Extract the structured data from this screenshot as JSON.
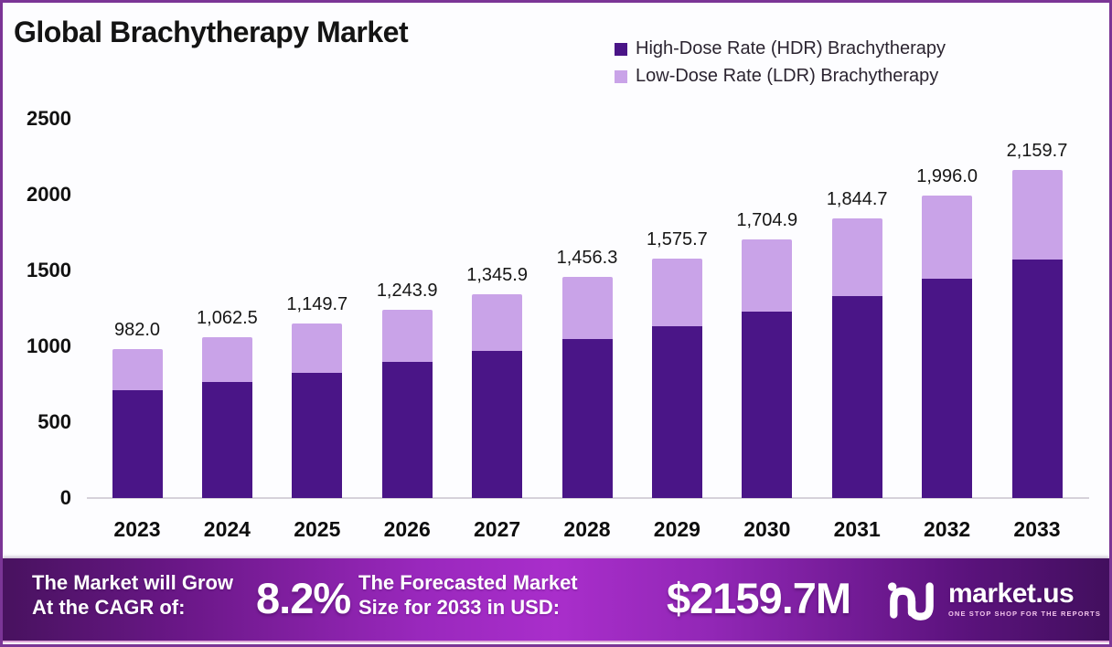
{
  "title": "Global Brachytherapy Market",
  "legend": [
    {
      "label": "High-Dose Rate (HDR) Brachytherapy",
      "color": "#4a1587"
    },
    {
      "label": "Low-Dose Rate (LDR) Brachytherapy",
      "color": "#c9a3e8"
    }
  ],
  "chart_data": {
    "type": "bar",
    "stacked": true,
    "title": "Global Brachytherapy Market",
    "xlabel": "",
    "ylabel": "",
    "ylim": [
      0,
      2500
    ],
    "yticks": [
      0,
      500,
      1000,
      1500,
      2000,
      2500
    ],
    "grid": false,
    "legend_position": "top-right",
    "categories": [
      "2023",
      "2024",
      "2025",
      "2026",
      "2027",
      "2028",
      "2029",
      "2030",
      "2031",
      "2032",
      "2033"
    ],
    "series": [
      {
        "name": "High-Dose Rate (HDR) Brachytherapy",
        "color": "#4a1587",
        "values": [
          710.0,
          765.0,
          825.0,
          895.0,
          970.0,
          1050.0,
          1135.0,
          1230.0,
          1330.0,
          1445.0,
          1570.0
        ]
      },
      {
        "name": "Low-Dose Rate (LDR) Brachytherapy",
        "color": "#c9a3e8",
        "values": [
          272.0,
          297.5,
          324.7,
          348.9,
          375.9,
          406.3,
          440.7,
          474.9,
          514.7,
          551.0,
          589.7
        ]
      }
    ],
    "totals": [
      982.0,
      1062.5,
      1149.7,
      1243.9,
      1345.9,
      1456.3,
      1575.7,
      1704.9,
      1844.7,
      1996.0,
      2159.7
    ],
    "total_labels": [
      "982.0",
      "1,062.5",
      "1,149.7",
      "1,243.9",
      "1,345.9",
      "1,456.3",
      "1,575.7",
      "1,704.9",
      "1,844.7",
      "1,996.0",
      "2,159.7"
    ]
  },
  "footer": {
    "cagr_label_line1": "The Market will Grow",
    "cagr_label_line2": "At the CAGR of:",
    "cagr_value": "8.2%",
    "forecast_label_line1": "The Forecasted Market",
    "forecast_label_line2": "Size for 2033 in USD:",
    "forecast_value": "$2159.7M",
    "brand": "market.us",
    "brand_tagline": "ONE STOP SHOP FOR THE REPORTS"
  },
  "colors": {
    "hdr_bar": "#4a1587",
    "ldr_bar": "#c9a3e8",
    "page_border": "#7b3596",
    "banner_bright": "#a92ecb",
    "banner_dark": "#48125f",
    "axis_line": "#d6d2da"
  }
}
